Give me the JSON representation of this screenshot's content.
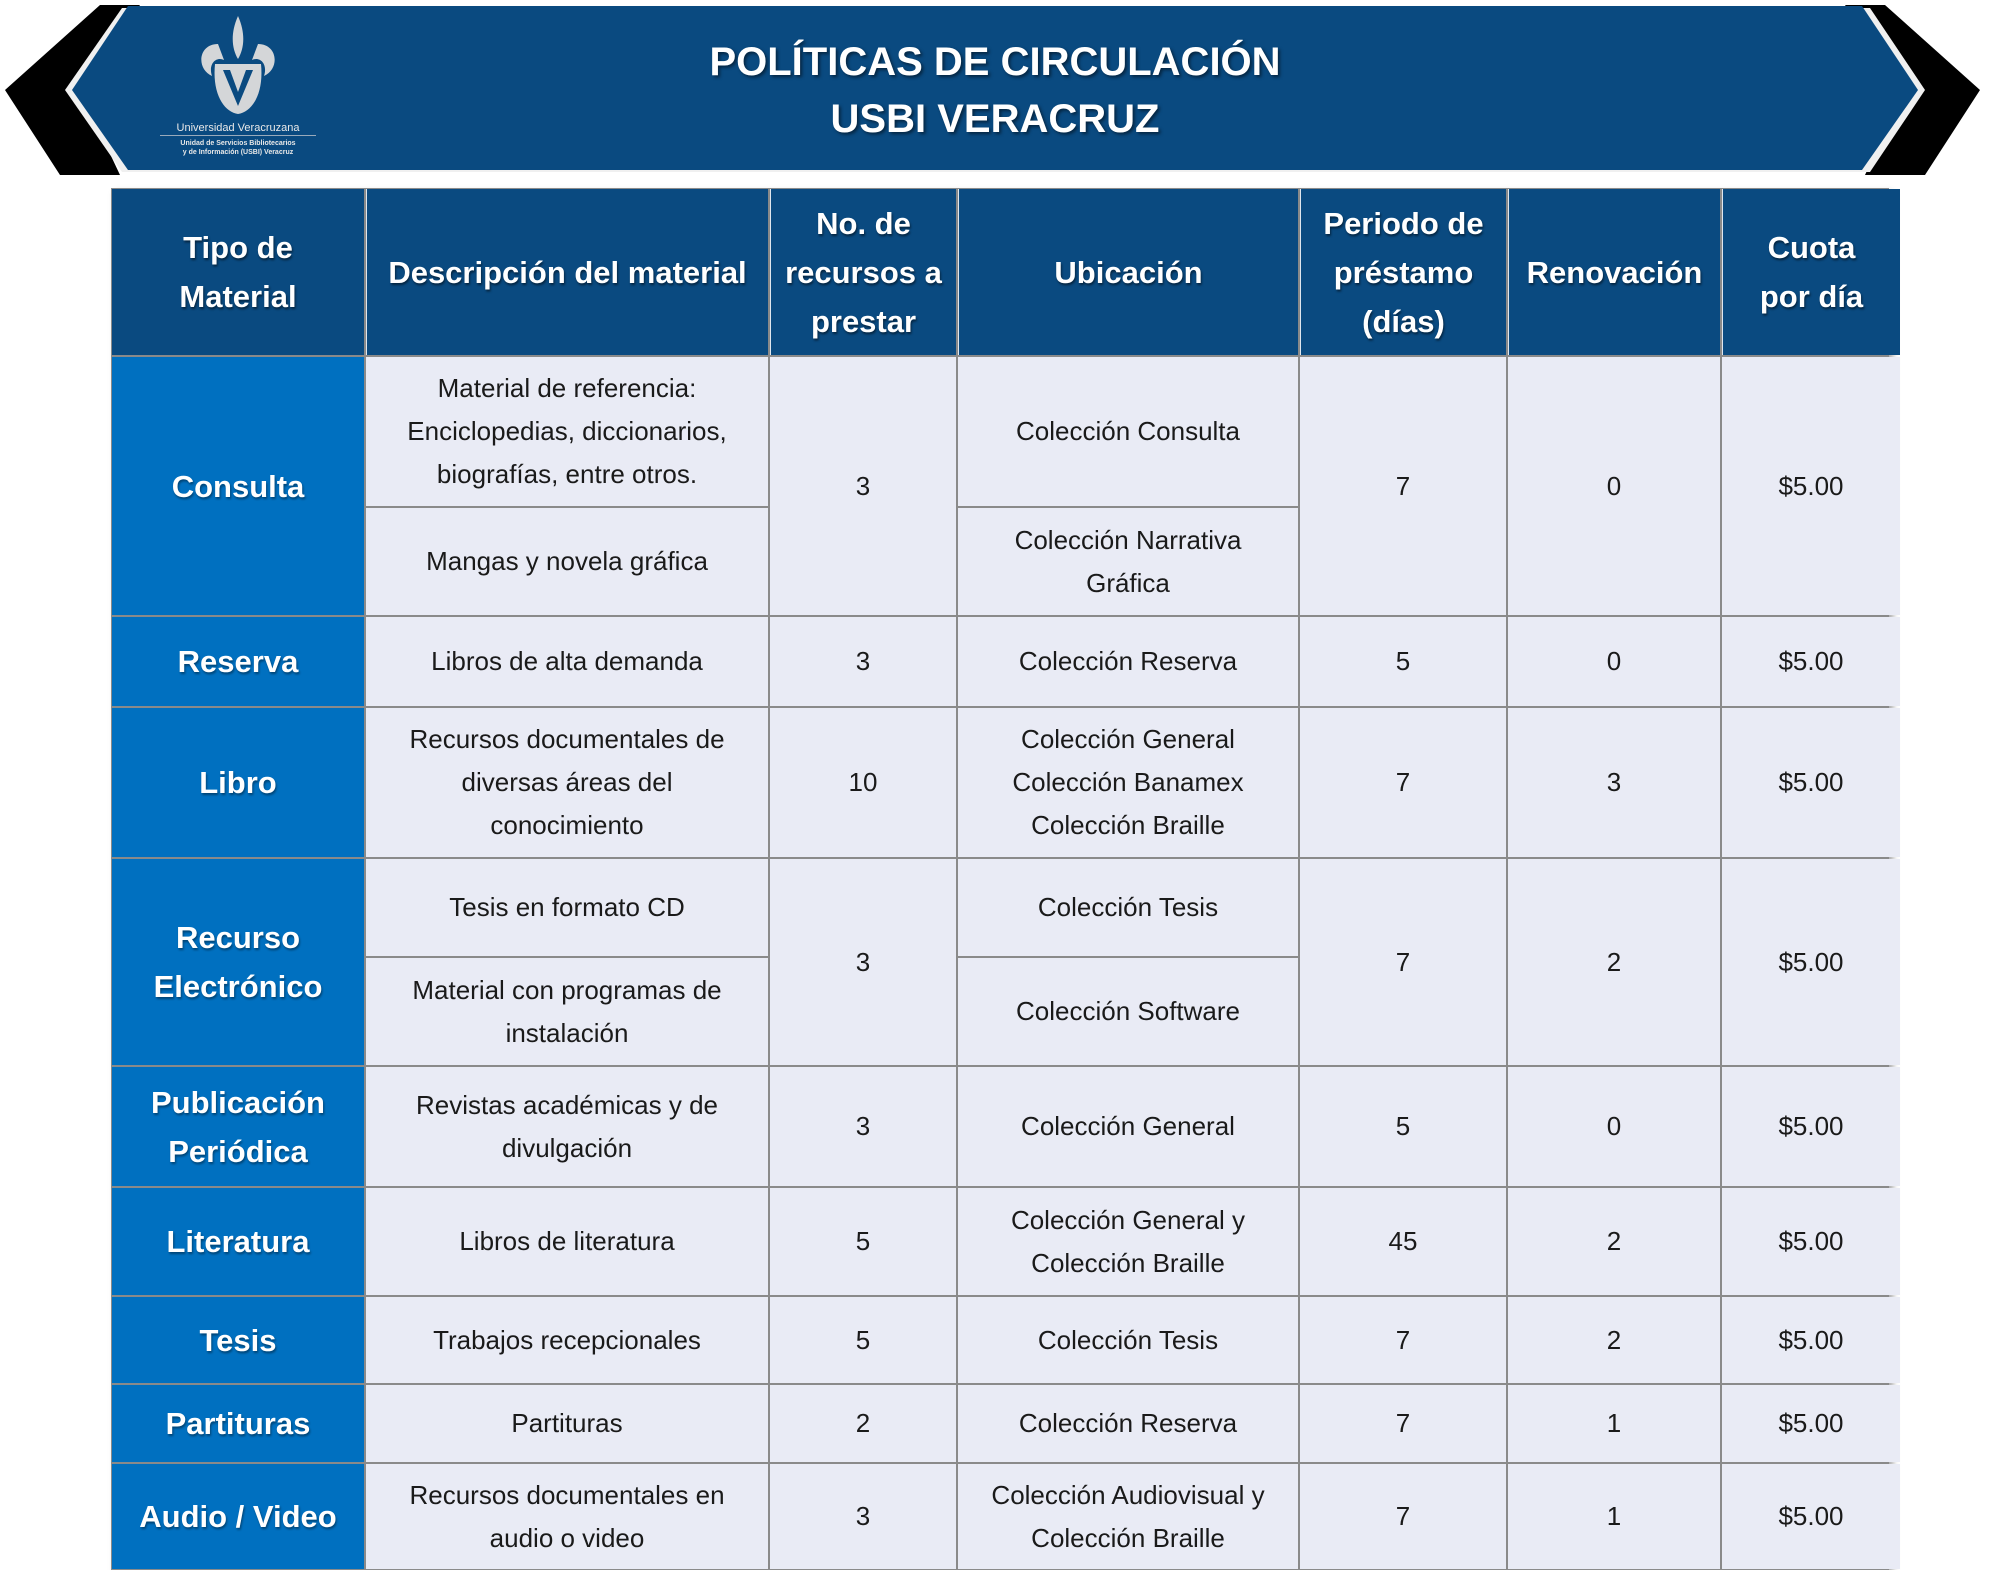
{
  "banner": {
    "title_line1": "POLÍTICAS DE CIRCULACIÓN",
    "title_line2": "USBI VERACRUZ",
    "logo": {
      "name": "Universidad Veracruzana",
      "subtitle": "Unidad de Servicios Bibliotecarios\ny de Información (USBI) Veracruz"
    },
    "colors": {
      "banner": "#0a4a80",
      "type_cell": "#0070c0",
      "body_cell": "#e9ebf5"
    }
  },
  "headers": [
    "Tipo de\nMaterial",
    "Descripción del material",
    "No. de\nrecursos a\nprestar",
    "Ubicación",
    "Periodo de\npréstamo\n(días)",
    "Renovación",
    "Cuota\npor día"
  ],
  "rows": [
    {
      "tipo": "Consulta",
      "descripcion": [
        "Material de referencia:\nEnciclopedias, diccionarios,\nbiografías, entre otros.",
        "Mangas y novela gráfica"
      ],
      "recursos": "3",
      "ubicacion": [
        "Colección Consulta",
        "Colección Narrativa\nGráfica"
      ],
      "periodo": "7",
      "renovacion": "0",
      "cuota": "$5.00"
    },
    {
      "tipo": "Reserva",
      "descripcion": "Libros de alta demanda",
      "recursos": "3",
      "ubicacion": "Colección Reserva",
      "periodo": "5",
      "renovacion": "0",
      "cuota": "$5.00"
    },
    {
      "tipo": "Libro",
      "descripcion": "Recursos documentales de\ndiversas áreas del\nconocimiento",
      "recursos": "10",
      "ubicacion": "Colección General\nColección Banamex\nColección Braille",
      "periodo": "7",
      "renovacion": "3",
      "cuota": "$5.00"
    },
    {
      "tipo": "Recurso\nElectrónico",
      "descripcion": [
        "Tesis en formato CD",
        "Material con programas de\ninstalación"
      ],
      "recursos": "3",
      "ubicacion": [
        "Colección Tesis",
        "Colección Software"
      ],
      "periodo": "7",
      "renovacion": "2",
      "cuota": "$5.00"
    },
    {
      "tipo": "Publicación\nPeriódica",
      "descripcion": "Revistas académicas y de\ndivulgación",
      "recursos": "3",
      "ubicacion": "Colección General",
      "periodo": "5",
      "renovacion": "0",
      "cuota": "$5.00"
    },
    {
      "tipo": "Literatura",
      "descripcion": "Libros de literatura",
      "recursos": "5",
      "ubicacion": "Colección General y\nColección Braille",
      "periodo": "45",
      "renovacion": "2",
      "cuota": "$5.00"
    },
    {
      "tipo": "Tesis",
      "descripcion": "Trabajos recepcionales",
      "recursos": "5",
      "ubicacion": "Colección Tesis",
      "periodo": "7",
      "renovacion": "2",
      "cuota": "$5.00"
    },
    {
      "tipo": "Partituras",
      "descripcion": "Partituras",
      "recursos": "2",
      "ubicacion": "Colección Reserva",
      "periodo": "7",
      "renovacion": "1",
      "cuota": "$5.00"
    },
    {
      "tipo": "Audio / Video",
      "descripcion": "Recursos documentales en\naudio o video",
      "recursos": "3",
      "ubicacion": "Colección Audiovisual y\nColección Braille",
      "periodo": "7",
      "renovacion": "1",
      "cuota": "$5.00"
    }
  ]
}
